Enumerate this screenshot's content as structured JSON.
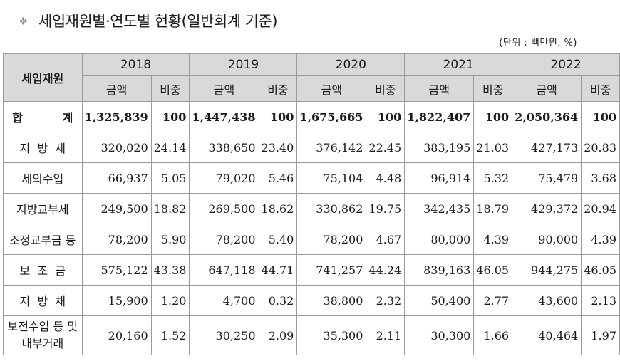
{
  "title": {
    "icon": "diamond-cluster-icon",
    "text": "세입재원별·연도별 현황(일반회계 기준)"
  },
  "unit": "(단위 : 백만원, %)",
  "table": {
    "category_header": "세입재원",
    "years": [
      "2018",
      "2019",
      "2020",
      "2021",
      "2022"
    ],
    "amount_label": "금액",
    "ratio_label": "비중",
    "rows": [
      {
        "cat": "합          계",
        "values": [
          "1,325,839",
          "100",
          "1,447,438",
          "100",
          "1,675,665",
          "100",
          "1,822,407",
          "100",
          "2,050,364",
          "100"
        ]
      },
      {
        "cat": "지  방  세",
        "values": [
          "320,020",
          "24.14",
          "338,650",
          "23.40",
          "376,142",
          "22.45",
          "383,195",
          "21.03",
          "427,173",
          "20.83"
        ]
      },
      {
        "cat": "세외수입",
        "values": [
          "66,937",
          "5.05",
          "79,020",
          "5.46",
          "75,104",
          "4.48",
          "96,914",
          "5.32",
          "75,479",
          "3.68"
        ]
      },
      {
        "cat": "지방교부세",
        "values": [
          "249,500",
          "18.82",
          "269,500",
          "18.62",
          "330,862",
          "19.75",
          "342,435",
          "18.79",
          "429,372",
          "20.94"
        ]
      },
      {
        "cat": "조정교부금 등",
        "values": [
          "78,200",
          "5.90",
          "78,200",
          "5.40",
          "78,200",
          "4.67",
          "80,000",
          "4.39",
          "90,000",
          "4.39"
        ]
      },
      {
        "cat": "보  조  금",
        "values": [
          "575,122",
          "43.38",
          "647,118",
          "44.71",
          "741,257",
          "44.24",
          "839,163",
          "46.05",
          "944,275",
          "46.05"
        ]
      },
      {
        "cat": "지  방  채",
        "values": [
          "15,900",
          "1.20",
          "4,700",
          "0.32",
          "38,800",
          "2.32",
          "50,400",
          "2.77",
          "43,600",
          "2.13"
        ]
      },
      {
        "cat": "보전수입 등 및 내부거래",
        "values": [
          "20,160",
          "1.52",
          "30,250",
          "2.09",
          "35,300",
          "2.11",
          "30,300",
          "1.66",
          "40,464",
          "1.97"
        ]
      }
    ]
  }
}
